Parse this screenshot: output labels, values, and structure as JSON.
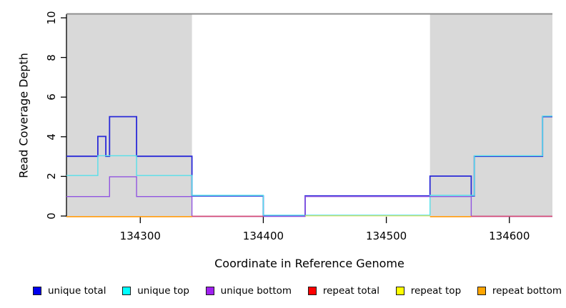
{
  "figure": {
    "x_axis_label": "Coordinate in Reference Genome",
    "y_axis_label": "Read Coverage Depth"
  },
  "axes": {
    "x_range": [
      134240,
      134635
    ],
    "y_range": [
      0,
      10
    ],
    "x_ticks": [
      {
        "label": "134300",
        "value": 134300
      },
      {
        "label": "134400",
        "value": 134400
      },
      {
        "label": "134500",
        "value": 134500
      },
      {
        "label": "134600",
        "value": 134600
      }
    ],
    "y_ticks": [
      {
        "label": "0",
        "value": 0
      },
      {
        "label": "2",
        "value": 2
      },
      {
        "label": "4",
        "value": 4
      },
      {
        "label": "6",
        "value": 6
      },
      {
        "label": "8",
        "value": 8
      },
      {
        "label": "10",
        "value": 10
      }
    ],
    "grid": "off",
    "top_border_color": "#8f8f8f",
    "axis_color": "#000000"
  },
  "chart_data": {
    "type": "line",
    "subtype": "step-coverage",
    "title": "",
    "xlabel": "Coordinate in Reference Genome",
    "ylabel": "Read Coverage Depth",
    "xlim": [
      134240,
      134635
    ],
    "ylim": [
      0,
      10
    ],
    "shaded_regions": [
      {
        "name": "repeat-region-left",
        "x_start": 134240,
        "x_end": 134342,
        "fill": "#d9d9d9"
      },
      {
        "name": "repeat-region-right",
        "x_start": 134535.5,
        "x_end": 134635,
        "fill": "#d9d9d9"
      }
    ],
    "series": [
      {
        "name": "unique total",
        "color": "#2a2ad8",
        "swatch": "#0000ee",
        "segments": [
          [
            [
              134240,
              3
            ],
            [
              134265.5,
              3
            ],
            [
              134265.5,
              4
            ],
            [
              134272,
              4
            ],
            [
              134272,
              3
            ],
            [
              134275,
              3
            ],
            [
              134275,
              5
            ],
            [
              134297,
              5
            ],
            [
              134297,
              3
            ],
            [
              134342,
              3
            ],
            [
              134342,
              1
            ],
            [
              134400,
              1
            ],
            [
              134400,
              0
            ],
            [
              134434,
              0
            ],
            [
              134434,
              1
            ],
            [
              134535.5,
              1
            ],
            [
              134535.5,
              2
            ],
            [
              134569,
              2
            ],
            [
              134569,
              1
            ],
            [
              134571.5,
              1
            ],
            [
              134571.5,
              3
            ],
            [
              134627,
              3
            ],
            [
              134627,
              5
            ],
            [
              134635,
              5
            ]
          ]
        ]
      },
      {
        "name": "unique top",
        "color": "#55e0ea",
        "swatch": "#00ffff",
        "segments": [
          [
            [
              134240,
              2
            ],
            [
              134265.5,
              2
            ],
            [
              134265.5,
              3
            ],
            [
              134297,
              3
            ],
            [
              134297,
              2
            ],
            [
              134342,
              2
            ],
            [
              134342,
              1
            ],
            [
              134400,
              1
            ],
            [
              134400,
              0
            ],
            [
              134535.5,
              0
            ],
            [
              134535.5,
              1
            ],
            [
              134571.5,
              1
            ],
            [
              134571.5,
              3
            ],
            [
              134627,
              3
            ],
            [
              134627,
              5
            ],
            [
              134635,
              5
            ]
          ]
        ]
      },
      {
        "name": "unique bottom",
        "color": "#9155e0",
        "swatch": "#a020f0",
        "segments": [
          [
            [
              134240,
              1
            ],
            [
              134275,
              1
            ],
            [
              134275,
              2
            ],
            [
              134297,
              2
            ],
            [
              134297,
              1
            ],
            [
              134342,
              1
            ],
            [
              134342,
              0
            ],
            [
              134434,
              0
            ],
            [
              134434,
              1
            ],
            [
              134569,
              1
            ],
            [
              134569,
              0
            ],
            [
              134635,
              0
            ]
          ]
        ]
      },
      {
        "name": "repeat total",
        "color": "#d64a72",
        "swatch": "#ff0000",
        "segments": [
          [
            [
              134342,
              0
            ],
            [
              134400,
              0
            ]
          ],
          [
            [
              134569,
              0
            ],
            [
              134635,
              0
            ]
          ]
        ]
      },
      {
        "name": "repeat top",
        "color": "#cfe06a",
        "swatch": "#ffff00",
        "segments": [
          [
            [
              134434,
              0
            ],
            [
              134535.5,
              0
            ]
          ]
        ]
      },
      {
        "name": "repeat bottom",
        "color": "#ff9f1a",
        "swatch": "#ffa500",
        "segments": [
          [
            [
              134240,
              0
            ],
            [
              134342,
              0
            ]
          ],
          [
            [
              134535.5,
              0
            ],
            [
              134569,
              0
            ]
          ]
        ]
      }
    ]
  },
  "legend": {
    "items": [
      {
        "label": "unique total",
        "color": "#0000ee"
      },
      {
        "label": "unique top",
        "color": "#00ffff"
      },
      {
        "label": "unique bottom",
        "color": "#a020f0"
      },
      {
        "label": "repeat total",
        "color": "#ff0000"
      },
      {
        "label": "repeat top",
        "color": "#ffff00"
      },
      {
        "label": "repeat bottom",
        "color": "#ffa500"
      }
    ]
  }
}
